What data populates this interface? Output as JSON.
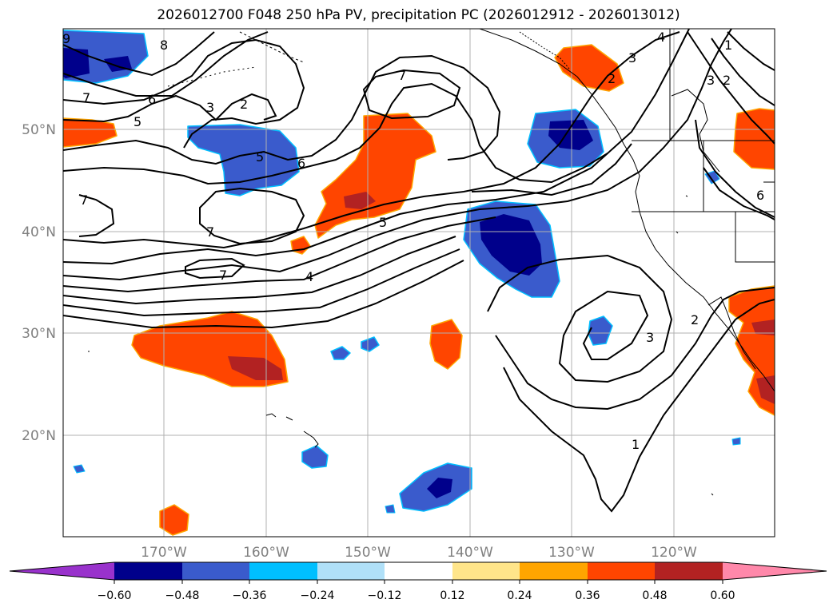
{
  "figure": {
    "title": "2026012700 F048 250 hPa PV, precipitation PC (2026012912 - 2026013012)"
  },
  "map": {
    "lat_labels": [
      "50°N",
      "40°N",
      "30°N",
      "20°N"
    ],
    "lon_labels": [
      "170°W",
      "160°W",
      "150°W",
      "140°W",
      "130°W",
      "120°W"
    ],
    "contour_labels": [
      "9",
      "8",
      "7",
      "6",
      "5",
      "3",
      "2",
      "5",
      "6",
      "7",
      "7",
      "7",
      "5",
      "4",
      "7",
      "4",
      "2",
      "3",
      "1",
      "2",
      "3",
      "6",
      "2",
      "3",
      "1"
    ]
  },
  "colorbar": {
    "ticks": [
      "−0.60",
      "−0.48",
      "−0.36",
      "−0.24",
      "−0.12",
      "0.12",
      "0.24",
      "0.36",
      "0.48",
      "0.60"
    ],
    "colors": [
      "#9932cc",
      "#00008b",
      "#3a5bcc",
      "#00bfff",
      "#b0e0f8",
      "#ffffff",
      "#ffe58a",
      "#ffa500",
      "#ff4500",
      "#b22222",
      "#ff88aa"
    ]
  }
}
